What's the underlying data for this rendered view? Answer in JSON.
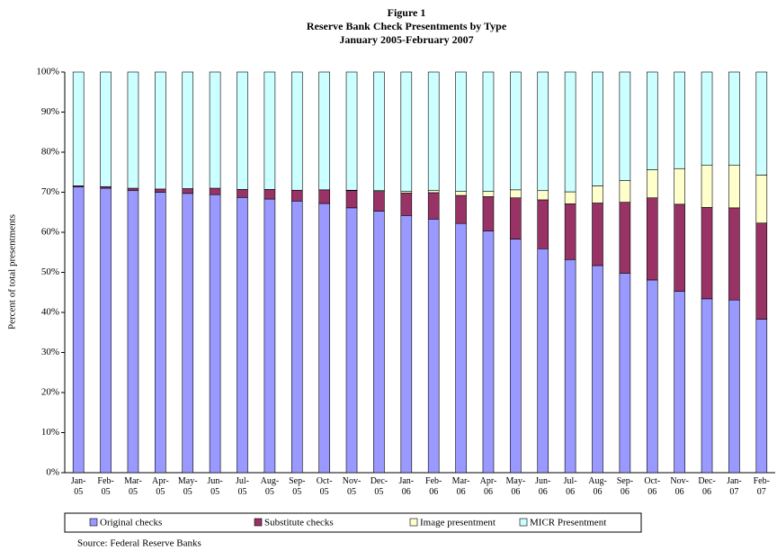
{
  "chart_data": {
    "type": "stacked_bar",
    "title": "Figure 1",
    "subtitle": [
      "Reserve Bank Check Presentments by Type",
      "January 2005-February 2007"
    ],
    "y_label": "Percent of total presentments",
    "source": "Source:  Federal Reserve Banks",
    "categories": [
      "Jan-05",
      "Feb-05",
      "Mar-05",
      "Apr-05",
      "May-05",
      "Jun-05",
      "Jul-05",
      "Aug-05",
      "Sep-05",
      "Oct-05",
      "Nov-05",
      "Dec-05",
      "Jan-06",
      "Feb-06",
      "Mar-06",
      "Apr-06",
      "May-06",
      "Jun-06",
      "Jul-06",
      "Aug-06",
      "Sep-06",
      "Oct-06",
      "Nov-06",
      "Dec-06",
      "Jan-07",
      "Feb-07"
    ],
    "series": [
      {
        "name": "Original checks",
        "color": "#9999ff",
        "values": [
          71.3,
          71.0,
          70.4,
          70.0,
          69.7,
          69.4,
          68.7,
          68.3,
          67.8,
          67.2,
          66.1,
          65.3,
          64.2,
          63.3,
          62.2,
          60.3,
          58.3,
          55.9,
          53.2,
          51.7,
          49.8,
          48.1,
          45.3,
          43.4,
          43.1,
          38.3
        ]
      },
      {
        "name": "Substitute checks",
        "color": "#993366",
        "values": [
          0.3,
          0.4,
          0.6,
          0.8,
          1.2,
          1.6,
          2.0,
          2.4,
          2.7,
          3.4,
          4.3,
          4.9,
          5.6,
          6.6,
          7.0,
          8.6,
          10.3,
          12.2,
          13.9,
          15.6,
          17.7,
          20.5,
          21.7,
          22.8,
          23.0,
          24.0
        ]
      },
      {
        "name": "Image presentment",
        "color": "#ffffcc",
        "values": [
          0,
          0,
          0,
          0,
          0,
          0,
          0,
          0,
          0,
          0,
          0.1,
          0.2,
          0.4,
          0.6,
          1.0,
          1.3,
          2.0,
          2.3,
          3.0,
          4.3,
          5.4,
          7.0,
          8.9,
          10.5,
          10.6,
          12.0
        ]
      },
      {
        "name": "MICR Presentment",
        "color": "#ccffff",
        "values": [
          28.4,
          28.6,
          29.0,
          29.2,
          29.1,
          29.0,
          29.3,
          29.3,
          29.5,
          29.4,
          29.5,
          29.6,
          29.8,
          29.5,
          29.8,
          29.8,
          29.4,
          29.6,
          29.9,
          28.4,
          27.1,
          24.4,
          24.1,
          23.3,
          23.3,
          25.7
        ]
      }
    ],
    "ylim": [
      0,
      100
    ],
    "yticks": [
      {
        "value": 0,
        "label": "0%"
      },
      {
        "value": 10,
        "label": "10%"
      },
      {
        "value": 20,
        "label": "20%"
      },
      {
        "value": 30,
        "label": "30%"
      },
      {
        "value": 40,
        "label": "40%"
      },
      {
        "value": 50,
        "label": "50%"
      },
      {
        "value": 60,
        "label": "60%"
      },
      {
        "value": 70,
        "label": "70%"
      },
      {
        "value": 80,
        "label": "80%"
      },
      {
        "value": 90,
        "label": "90%"
      },
      {
        "value": 100,
        "label": "100%"
      }
    ],
    "grid": false,
    "legend": "bottom"
  }
}
